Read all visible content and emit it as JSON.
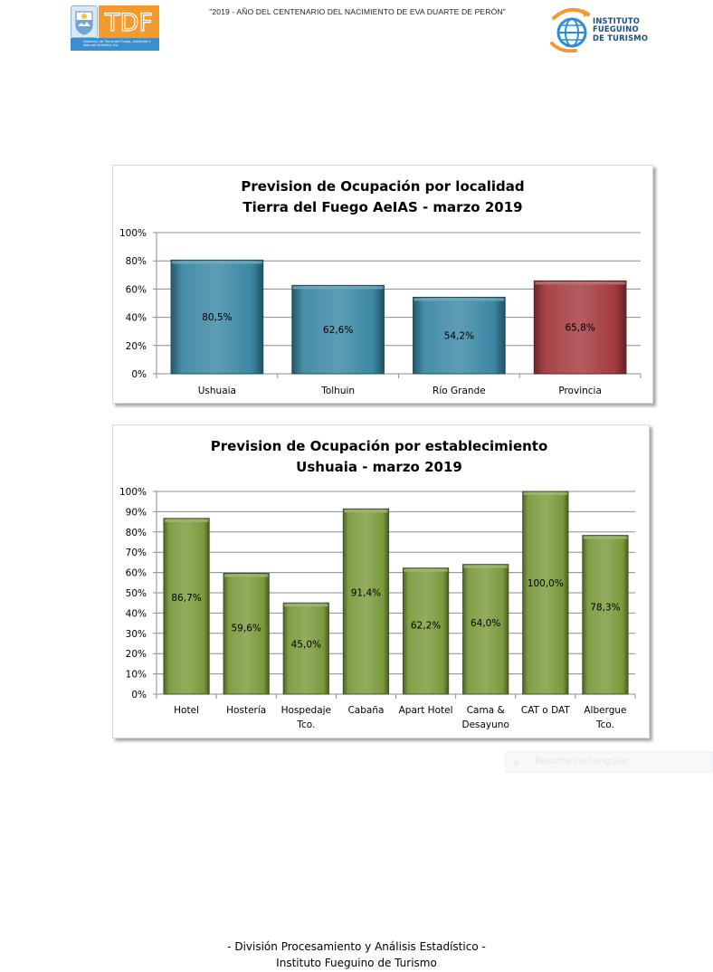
{
  "header": {
    "motto": "\"2019 - AÑO DEL CENTENARIO DEL NACIMIENTO DE EVA DUARTE DE PERÓN\"",
    "tdf_logo": {
      "mark_text": "TDF",
      "subtitle": "Gobierno de Tierra del Fuego, Antártida e Islas del Atlántico Sur",
      "colors": {
        "box": "#f39a2e",
        "band": "#3a8fd0"
      },
      "icon": "province-seal-icon"
    },
    "institute_logo": {
      "line1": "INSTITUTO",
      "line2": "FUEGUINO",
      "line3": "DE TURISMO",
      "icon": "globe-plane-icon",
      "colors": {
        "orange": "#f39a2e",
        "blue": "#2b8fd6",
        "text": "#1d4f7e"
      }
    }
  },
  "chart_data": [
    {
      "type": "bar",
      "title": "Prevision de Ocupación por localidad",
      "subtitle": "Tierra del Fuego AeIAS - marzo 2019",
      "categories": [
        "Ushuaia",
        "Tolhuin",
        "Río Grande",
        "Provincia"
      ],
      "values": [
        80.5,
        62.6,
        54.2,
        65.8
      ],
      "value_labels": [
        "80,5%",
        "62,6%",
        "54,2%",
        "65,8%"
      ],
      "bar_colors": [
        "#3b87a3",
        "#3b87a3",
        "#3b87a3",
        "#a33a3e"
      ],
      "ylim": [
        0,
        100
      ],
      "yticks": [
        0,
        20,
        40,
        60,
        80,
        100
      ],
      "ytick_labels": [
        "0%",
        "20%",
        "40%",
        "60%",
        "80%",
        "100%"
      ],
      "xlabel": "",
      "ylabel": "",
      "grid": true,
      "legend": "none"
    },
    {
      "type": "bar",
      "title": "Prevision de Ocupación por establecimiento",
      "subtitle": "Ushuaia - marzo 2019",
      "categories": [
        [
          "Hotel"
        ],
        [
          "Hostería"
        ],
        [
          "Hospedaje",
          "Tco."
        ],
        [
          "Cabaña"
        ],
        [
          "Apart Hotel"
        ],
        [
          "Cama &",
          "Desayuno"
        ],
        [
          "CAT o DAT"
        ],
        [
          "Albergue",
          "Tco."
        ]
      ],
      "values": [
        86.7,
        59.6,
        45.0,
        91.4,
        62.2,
        64.0,
        100.0,
        78.3
      ],
      "value_labels": [
        "86,7%",
        "59,6%",
        "45,0%",
        "91,4%",
        "62,2%",
        "64,0%",
        "100,0%",
        "78,3%"
      ],
      "bar_colors": [
        "#7a9a3c",
        "#7a9a3c",
        "#7a9a3c",
        "#7a9a3c",
        "#7a9a3c",
        "#7a9a3c",
        "#7a9a3c",
        "#7a9a3c"
      ],
      "ylim": [
        0,
        100
      ],
      "yticks": [
        0,
        10,
        20,
        30,
        40,
        50,
        60,
        70,
        80,
        90,
        100
      ],
      "ytick_labels": [
        "0%",
        "10%",
        "20%",
        "30%",
        "40%",
        "50%",
        "60%",
        "70%",
        "80%",
        "90%",
        "100%"
      ],
      "xlabel": "",
      "ylabel": "",
      "grid": true,
      "legend": "none"
    }
  ],
  "overlay": {
    "snip_label": "Recorte rectangular"
  },
  "footer": {
    "line1": "- División Procesamiento y Análisis Estadístico -",
    "line2": "Instituto Fueguino de Turismo"
  }
}
